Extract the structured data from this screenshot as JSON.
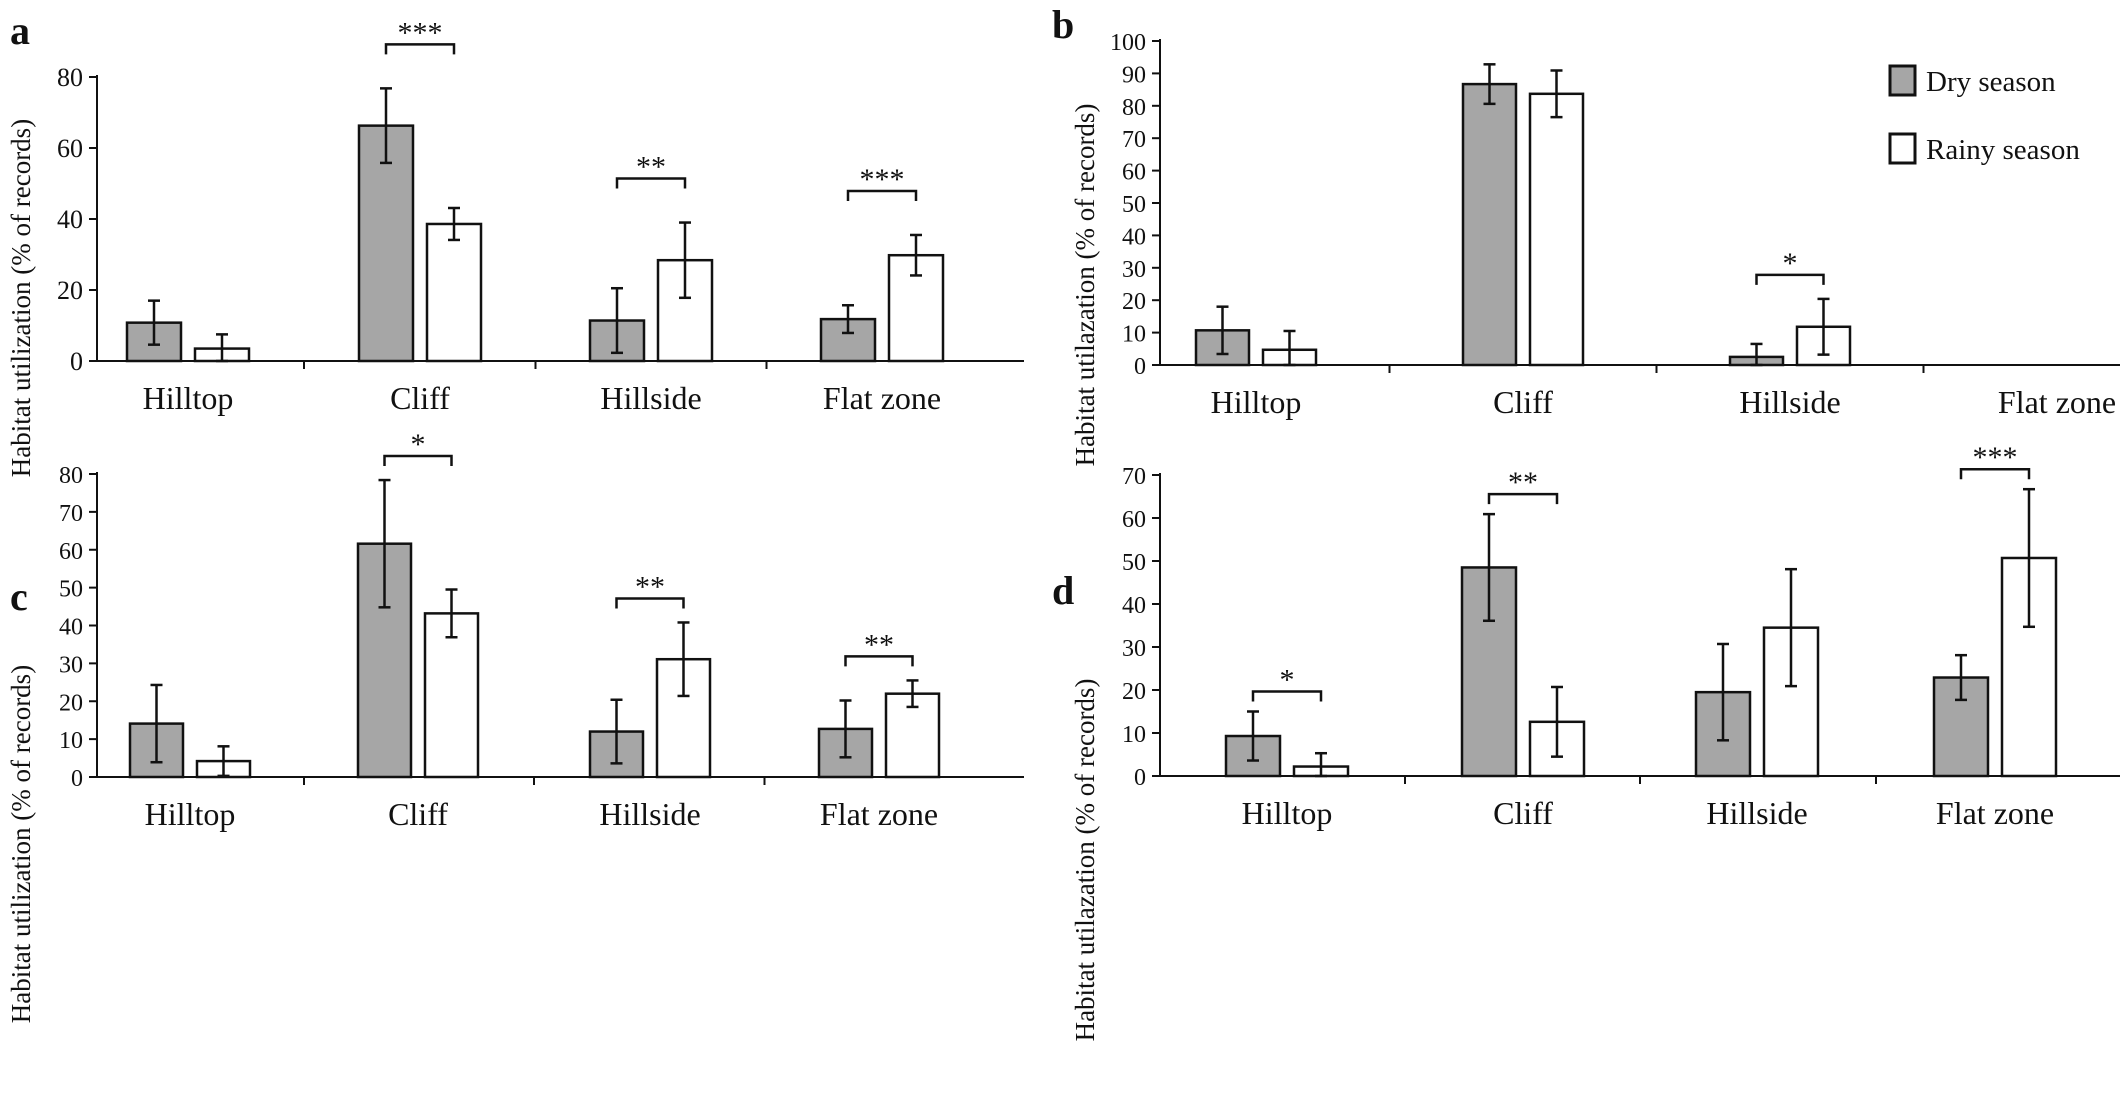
{
  "colors": {
    "dry": "#a6a6a6",
    "rainy": "#ffffff",
    "ink": "#111111"
  },
  "legend": {
    "dry": "Dry season",
    "rainy": "Rainy season"
  },
  "chart_data": [
    {
      "type": "bar",
      "panel": "a",
      "categories": [
        "Hilltop",
        "Cliff",
        "Hillside",
        "Flat zone"
      ],
      "ylabel": "Habitat utilization (% of records)",
      "xlabel": "",
      "ylim": [
        0,
        80
      ],
      "yticks": [
        0,
        20,
        40,
        60,
        80
      ],
      "series": [
        {
          "name": "Dry season",
          "values": [
            10.8,
            66.3,
            11.4,
            11.8
          ],
          "errors": [
            6.2,
            10.5,
            9.1,
            3.9
          ]
        },
        {
          "name": "Rainy season",
          "values": [
            3.5,
            38.6,
            28.4,
            29.8
          ],
          "errors": [
            4.0,
            4.5,
            10.6,
            5.7
          ]
        }
      ],
      "annotations": [
        {
          "category": 1,
          "label": "***"
        },
        {
          "category": 2,
          "label": "**"
        },
        {
          "category": 3,
          "label": "***"
        }
      ]
    },
    {
      "type": "bar",
      "panel": "b",
      "categories": [
        "Hilltop",
        "Cliff",
        "Hillside",
        "Flat zone"
      ],
      "ylabel": "Habitat utilazation (% of records)",
      "xlabel": "",
      "ylim": [
        0,
        100
      ],
      "yticks": [
        0,
        10,
        20,
        30,
        40,
        50,
        60,
        70,
        80,
        90,
        100
      ],
      "legend_position": "top-right",
      "series": [
        {
          "name": "Dry season",
          "values": [
            10.7,
            86.7,
            2.5,
            null
          ],
          "errors": [
            7.3,
            6.1,
            4.0,
            null
          ]
        },
        {
          "name": "Rainy season",
          "values": [
            4.7,
            83.7,
            11.8,
            null
          ],
          "errors": [
            5.8,
            7.2,
            8.6,
            null
          ]
        }
      ],
      "annotations": [
        {
          "category": 2,
          "label": "*"
        }
      ]
    },
    {
      "type": "bar",
      "panel": "c",
      "categories": [
        "Hilltop",
        "Cliff",
        "Hillside",
        "Flat zone"
      ],
      "ylabel": "Habitat utilization (% of records)",
      "xlabel": "",
      "ylim": [
        0,
        80
      ],
      "yticks": [
        0,
        10,
        20,
        30,
        40,
        50,
        60,
        70,
        80
      ],
      "series": [
        {
          "name": "Dry season",
          "values": [
            14.1,
            61.6,
            12.0,
            12.7
          ],
          "errors": [
            10.2,
            16.8,
            8.4,
            7.5
          ]
        },
        {
          "name": "Rainy season",
          "values": [
            4.2,
            43.2,
            31.1,
            22.0
          ],
          "errors": [
            3.9,
            6.3,
            9.7,
            3.5
          ]
        }
      ],
      "annotations": [
        {
          "category": 1,
          "label": "*"
        },
        {
          "category": 2,
          "label": "**"
        },
        {
          "category": 3,
          "label": "**"
        }
      ]
    },
    {
      "type": "bar",
      "panel": "d",
      "categories": [
        "Hilltop",
        "Cliff",
        "Hillside",
        "Flat zone"
      ],
      "ylabel": "Habitat utilazation (% of records)",
      "xlabel": "",
      "ylim": [
        0,
        70
      ],
      "yticks": [
        0,
        10,
        20,
        30,
        40,
        50,
        60,
        70
      ],
      "series": [
        {
          "name": "Dry season",
          "values": [
            9.3,
            48.5,
            19.5,
            22.9
          ],
          "errors": [
            5.7,
            12.4,
            11.2,
            5.2
          ]
        },
        {
          "name": "Rainy season",
          "values": [
            2.2,
            12.6,
            34.5,
            50.7
          ],
          "errors": [
            3.1,
            8.1,
            13.6,
            16.0
          ]
        }
      ],
      "annotations": [
        {
          "category": 0,
          "label": "*"
        },
        {
          "category": 1,
          "label": "**"
        },
        {
          "category": 3,
          "label": "***"
        }
      ]
    }
  ]
}
